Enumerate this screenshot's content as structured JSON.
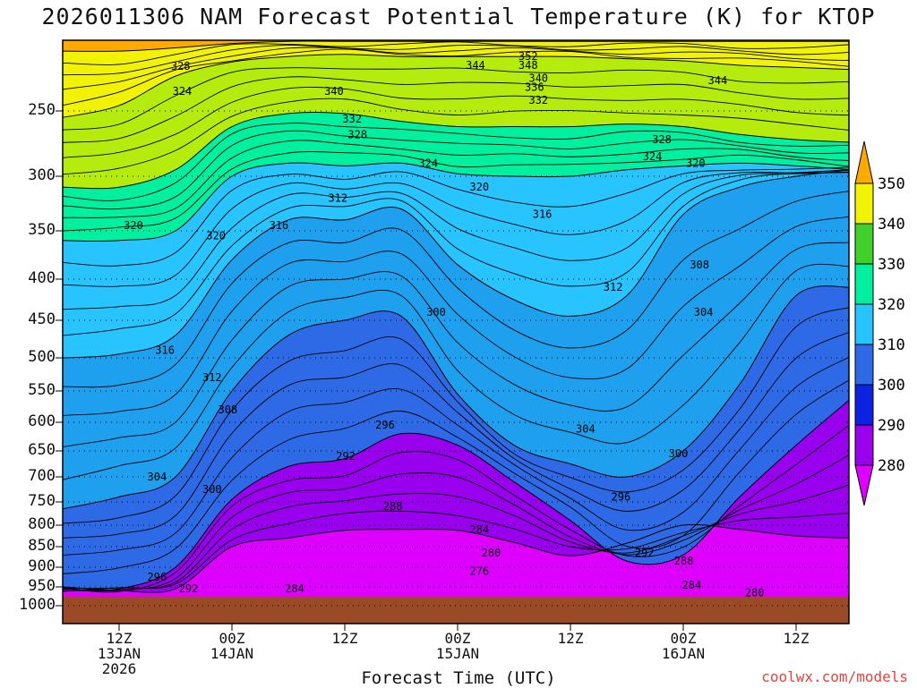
{
  "title": "2026011306 NAM Forecast Potential Temperature (K) for KTOP",
  "xaxis_title": "Forecast Time (UTC)",
  "credit": "coolwx.com/models",
  "colors": {
    "ground": "#9a4a26",
    "bands": [
      "#dd00ff",
      "#9900ee",
      "#0b22e0",
      "#2f6ae6",
      "#1ea0ef",
      "#27c4ff",
      "#00f0a0",
      "#3fd02a",
      "#b5ec0e",
      "#f2f207",
      "#ffaa00"
    ],
    "labels": [
      "280",
      "290",
      "300",
      "310",
      "320",
      "330",
      "340",
      "350"
    ]
  },
  "chart_data": {
    "type": "heatmap",
    "title": "2026011306 NAM Forecast Potential Temperature (K) for KTOP",
    "xlabel": "Forecast Time (UTC)",
    "ylabel": "",
    "y_ticks": [
      "250",
      "300",
      "350",
      "400",
      "450",
      "500",
      "550",
      "600",
      "650",
      "700",
      "750",
      "800",
      "850",
      "900",
      "950",
      "1000"
    ],
    "x_ticks": [
      {
        "l1": "12Z",
        "l2": "13JAN",
        "l3": "2026"
      },
      {
        "l1": "00Z",
        "l2": "14JAN",
        "l3": ""
      },
      {
        "l1": "12Z",
        "l2": "",
        "l3": ""
      },
      {
        "l1": "00Z",
        "l2": "15JAN",
        "l3": ""
      },
      {
        "l1": "12Z",
        "l2": "",
        "l3": ""
      },
      {
        "l1": "00Z",
        "l2": "16JAN",
        "l3": ""
      },
      {
        "l1": "12Z",
        "l2": "",
        "l3": ""
      }
    ],
    "colorbar": {
      "levels": [
        280,
        290,
        300,
        310,
        320,
        330,
        340,
        350
      ],
      "colors": [
        "#dd00ff",
        "#9900ee",
        "#0b22e0",
        "#2f6ae6",
        "#1ea0ef",
        "#27c4ff",
        "#00f0a0",
        "#3fd02a",
        "#b5ec0e",
        "#f2f207",
        "#ffaa00"
      ],
      "units": "K"
    },
    "x_hours": [
      6,
      12,
      18,
      24,
      30,
      36,
      42,
      48,
      54,
      60,
      66,
      72,
      78,
      84,
      90
    ],
    "isentropes": [
      {
        "theta": 280,
        "p": [
          960,
          960,
          955,
          850,
          830,
          812,
          810,
          812,
          840,
          872,
          842,
          800,
          810,
          825,
          830
        ]
      },
      {
        "theta": 290,
        "p": [
          955,
          955,
          900,
          745,
          680,
          665,
          620,
          640,
          710,
          790,
          885,
          870,
          740,
          640,
          560
        ]
      },
      {
        "theta": 300,
        "p": [
          765,
          740,
          700,
          550,
          470,
          450,
          445,
          555,
          640,
          675,
          700,
          650,
          540,
          420,
          410
        ]
      },
      {
        "theta": 310,
        "p": [
          500,
          495,
          470,
          380,
          340,
          340,
          330,
          385,
          425,
          445,
          420,
          335,
          310,
          300,
          295
        ]
      },
      {
        "theta": 320,
        "p": [
          360,
          360,
          350,
          300,
          290,
          292,
          290,
          298,
          300,
          300,
          295,
          292,
          290,
          292,
          295
        ]
      },
      {
        "theta": 330,
        "p": [
          310,
          310,
          295,
          262,
          252,
          252,
          258,
          262,
          262,
          262,
          260,
          262,
          268,
          272,
          274
        ]
      },
      {
        "theta": 340,
        "p": [
          255,
          245,
          218,
          205,
          200,
          198,
          200,
          200,
          200,
          200,
          202,
          204,
          208,
          210,
          212
        ]
      },
      {
        "theta": 350,
        "p": [
          195,
          195,
          192,
          188,
          186,
          186,
          186,
          186,
          186,
          186,
          186,
          186,
          186,
          186,
          186
        ]
      }
    ],
    "contour_labels": [
      {
        "text": "352",
        "x": 59.2,
        "p": 200
      },
      {
        "text": "348",
        "x": 59.2,
        "p": 208
      },
      {
        "text": "344",
        "x": 52.5,
        "p": 208
      },
      {
        "text": "344",
        "x": 83.3,
        "p": 222
      },
      {
        "text": "340",
        "x": 60.5,
        "p": 220
      },
      {
        "text": "340",
        "x": 34.5,
        "p": 232
      },
      {
        "text": "336",
        "x": 60.0,
        "p": 228
      },
      {
        "text": "332",
        "x": 60.5,
        "p": 240
      },
      {
        "text": "332",
        "x": 36.8,
        "p": 256
      },
      {
        "text": "328",
        "x": 15.0,
        "p": 209
      },
      {
        "text": "328",
        "x": 37.5,
        "p": 268
      },
      {
        "text": "328",
        "x": 76.2,
        "p": 272
      },
      {
        "text": "324",
        "x": 15.2,
        "p": 232
      },
      {
        "text": "324",
        "x": 46.5,
        "p": 290
      },
      {
        "text": "324",
        "x": 75.0,
        "p": 285
      },
      {
        "text": "320",
        "x": 80.5,
        "p": 290
      },
      {
        "text": "320",
        "x": 53.0,
        "p": 310
      },
      {
        "text": "320",
        "x": 9.0,
        "p": 345
      },
      {
        "text": "320",
        "x": 19.5,
        "p": 355
      },
      {
        "text": "316",
        "x": 27.5,
        "p": 345
      },
      {
        "text": "316",
        "x": 61.0,
        "p": 335
      },
      {
        "text": "312",
        "x": 35.0,
        "p": 320
      },
      {
        "text": "312",
        "x": 70.0,
        "p": 410
      },
      {
        "text": "308",
        "x": 81.0,
        "p": 385
      },
      {
        "text": "304",
        "x": 81.5,
        "p": 440
      },
      {
        "text": "300",
        "x": 47.5,
        "p": 440
      },
      {
        "text": "316",
        "x": 13.0,
        "p": 490
      },
      {
        "text": "312",
        "x": 19.0,
        "p": 530
      },
      {
        "text": "308",
        "x": 21.0,
        "p": 580
      },
      {
        "text": "304",
        "x": 66.5,
        "p": 612
      },
      {
        "text": "300",
        "x": 78.3,
        "p": 655
      },
      {
        "text": "296",
        "x": 41.0,
        "p": 605
      },
      {
        "text": "292",
        "x": 36.0,
        "p": 660
      },
      {
        "text": "304",
        "x": 12.0,
        "p": 700
      },
      {
        "text": "300",
        "x": 19.0,
        "p": 725
      },
      {
        "text": "296",
        "x": 71.0,
        "p": 740
      },
      {
        "text": "288",
        "x": 42.0,
        "p": 760
      },
      {
        "text": "284",
        "x": 53.0,
        "p": 810
      },
      {
        "text": "292",
        "x": 74.0,
        "p": 865
      },
      {
        "text": "288",
        "x": 79.0,
        "p": 885
      },
      {
        "text": "280",
        "x": 54.5,
        "p": 865
      },
      {
        "text": "276",
        "x": 53.0,
        "p": 910
      },
      {
        "text": "284",
        "x": 29.5,
        "p": 955
      },
      {
        "text": "284",
        "x": 80.0,
        "p": 945
      },
      {
        "text": "296",
        "x": 12.0,
        "p": 925
      },
      {
        "text": "292",
        "x": 16.0,
        "p": 955
      },
      {
        "text": "280",
        "x": 88.0,
        "p": 965
      }
    ]
  }
}
